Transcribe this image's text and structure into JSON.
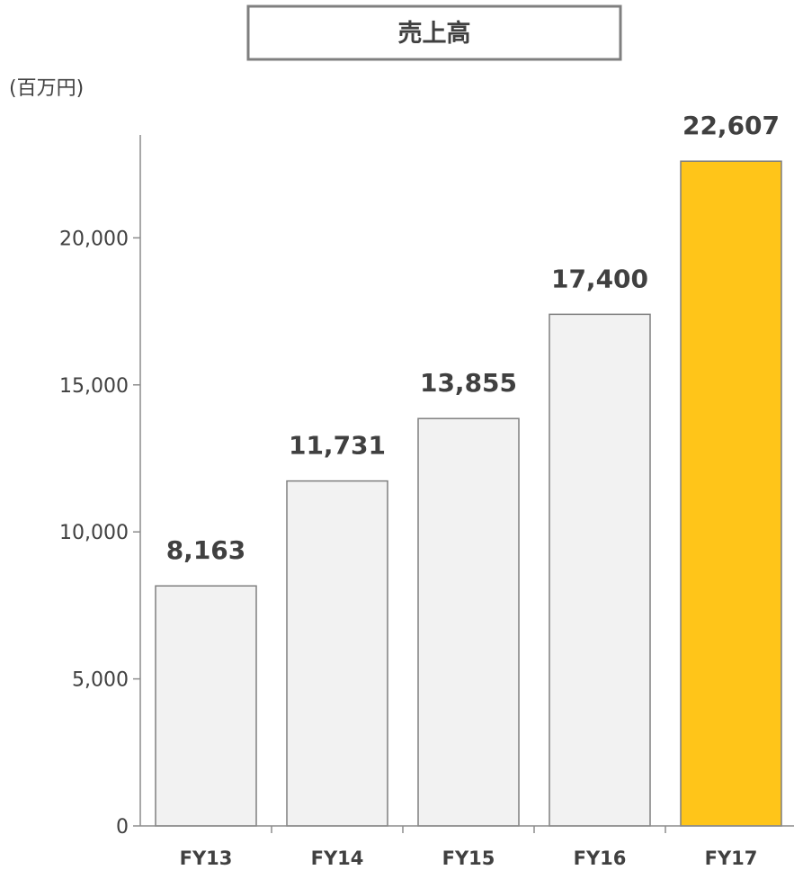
{
  "chart_data": {
    "type": "bar",
    "title": "売上高",
    "unit_label": "(百万円)",
    "xlabel": "",
    "ylabel": "",
    "categories": [
      "FY13",
      "FY14",
      "FY15",
      "FY16",
      "FY17"
    ],
    "values": [
      8163,
      11731,
      13855,
      17400,
      22607
    ],
    "value_labels": [
      "8,163",
      "11,731",
      "13,855",
      "17,400",
      "22,607"
    ],
    "ylim": [
      0,
      23500
    ],
    "y_ticks": [
      0,
      5000,
      10000,
      15000,
      20000
    ],
    "y_tick_labels": [
      "0",
      "5,000",
      "10,000",
      "15,000",
      "20,000"
    ],
    "grid": false,
    "legend": "none",
    "colors": {
      "default_bar": "#f2f2f2",
      "highlight_bar": "#ffc519",
      "bar_border": "#7f7f7f",
      "text": "#404040",
      "axis": "#8c8c8c"
    },
    "highlight_index": 4
  }
}
